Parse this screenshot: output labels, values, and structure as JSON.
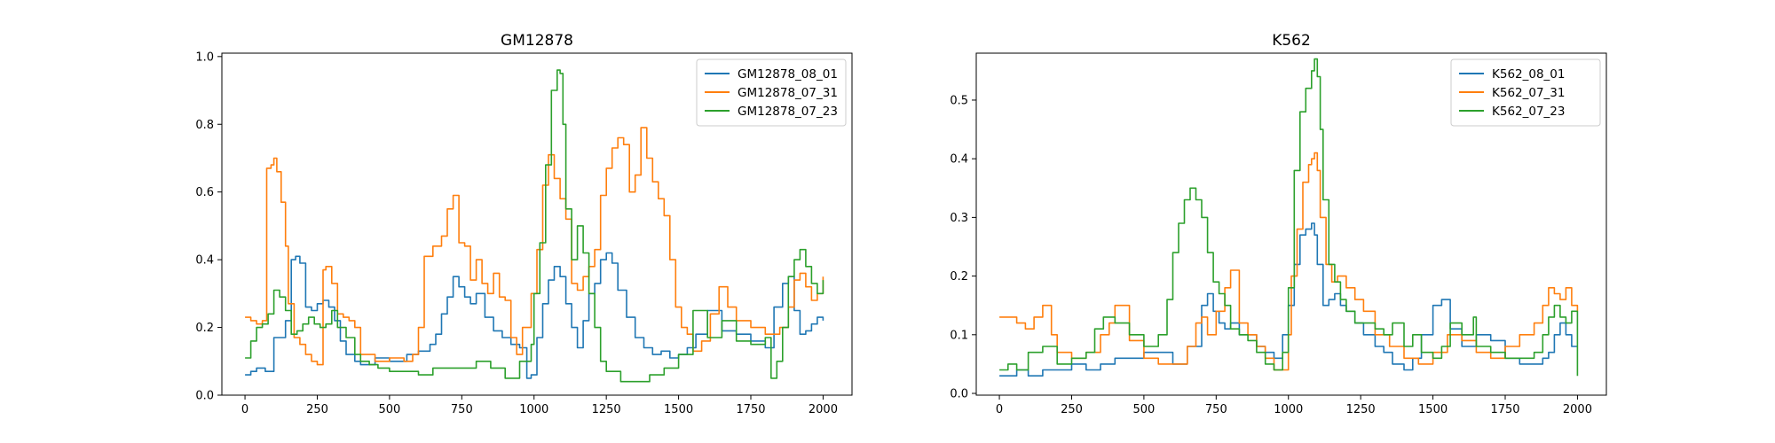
{
  "chart_data": [
    {
      "type": "line",
      "title": "GM12878",
      "xlabel": "",
      "ylabel": "",
      "xlim": [
        -80,
        2100
      ],
      "ylim": [
        0,
        1.01
      ],
      "xticks": [
        0,
        250,
        500,
        750,
        1000,
        1250,
        1500,
        1750,
        2000
      ],
      "xtick_labels": [
        "0",
        "250",
        "500",
        "750",
        "1000",
        "1250",
        "1500",
        "1750",
        "2000"
      ],
      "yticks": [
        0.0,
        0.2,
        0.4,
        0.6,
        0.8,
        1.0
      ],
      "ytick_labels": [
        "0.0",
        "0.2",
        "0.4",
        "0.6",
        "0.8",
        "1.0"
      ],
      "grid": false,
      "legend_position": "top-right",
      "series": [
        {
          "name": "GM12878_08_01",
          "color": "#1f77b4",
          "x": [
            0,
            20,
            40,
            70,
            100,
            120,
            140,
            160,
            175,
            190,
            210,
            230,
            250,
            270,
            290,
            310,
            330,
            350,
            380,
            400,
            450,
            500,
            530,
            560,
            600,
            640,
            660,
            680,
            700,
            720,
            740,
            760,
            780,
            800,
            830,
            860,
            890,
            920,
            950,
            975,
            990,
            1010,
            1030,
            1050,
            1070,
            1090,
            1110,
            1130,
            1150,
            1170,
            1190,
            1210,
            1230,
            1250,
            1270,
            1290,
            1320,
            1350,
            1380,
            1410,
            1440,
            1470,
            1500,
            1530,
            1560,
            1600,
            1650,
            1700,
            1750,
            1800,
            1830,
            1860,
            1880,
            1900,
            1920,
            1940,
            1960,
            1980,
            2000
          ],
          "y": [
            0.06,
            0.07,
            0.08,
            0.07,
            0.17,
            0.17,
            0.22,
            0.4,
            0.41,
            0.39,
            0.26,
            0.25,
            0.27,
            0.28,
            0.26,
            0.22,
            0.16,
            0.12,
            0.1,
            0.09,
            0.11,
            0.1,
            0.1,
            0.12,
            0.13,
            0.15,
            0.18,
            0.24,
            0.29,
            0.35,
            0.32,
            0.29,
            0.27,
            0.3,
            0.23,
            0.19,
            0.17,
            0.15,
            0.14,
            0.05,
            0.06,
            0.17,
            0.27,
            0.34,
            0.38,
            0.35,
            0.27,
            0.2,
            0.14,
            0.22,
            0.3,
            0.33,
            0.4,
            0.42,
            0.39,
            0.31,
            0.23,
            0.17,
            0.14,
            0.12,
            0.13,
            0.11,
            0.12,
            0.14,
            0.18,
            0.25,
            0.19,
            0.18,
            0.16,
            0.14,
            0.26,
            0.33,
            0.35,
            0.25,
            0.18,
            0.19,
            0.21,
            0.23,
            0.22
          ]
        },
        {
          "name": "GM12878_07_31",
          "color": "#ff7f0e",
          "x": [
            0,
            20,
            40,
            60,
            75,
            90,
            100,
            110,
            125,
            140,
            150,
            170,
            190,
            210,
            230,
            250,
            270,
            280,
            300,
            320,
            340,
            360,
            380,
            400,
            450,
            500,
            550,
            580,
            600,
            620,
            650,
            680,
            700,
            720,
            740,
            760,
            780,
            800,
            820,
            840,
            860,
            880,
            900,
            920,
            940,
            960,
            990,
            1010,
            1030,
            1050,
            1070,
            1090,
            1110,
            1130,
            1150,
            1170,
            1190,
            1210,
            1230,
            1250,
            1270,
            1290,
            1310,
            1330,
            1350,
            1370,
            1390,
            1410,
            1430,
            1450,
            1470,
            1490,
            1510,
            1530,
            1550,
            1580,
            1610,
            1640,
            1670,
            1700,
            1750,
            1800,
            1850,
            1880,
            1900,
            1920,
            1940,
            1960,
            1980,
            2000
          ],
          "y": [
            0.23,
            0.22,
            0.21,
            0.22,
            0.67,
            0.68,
            0.7,
            0.66,
            0.57,
            0.44,
            0.27,
            0.17,
            0.15,
            0.12,
            0.1,
            0.09,
            0.37,
            0.38,
            0.33,
            0.24,
            0.23,
            0.22,
            0.2,
            0.12,
            0.1,
            0.11,
            0.1,
            0.12,
            0.2,
            0.41,
            0.44,
            0.47,
            0.55,
            0.59,
            0.45,
            0.44,
            0.34,
            0.4,
            0.33,
            0.3,
            0.36,
            0.29,
            0.28,
            0.17,
            0.12,
            0.2,
            0.3,
            0.43,
            0.62,
            0.71,
            0.64,
            0.58,
            0.52,
            0.33,
            0.31,
            0.35,
            0.38,
            0.43,
            0.59,
            0.67,
            0.73,
            0.76,
            0.74,
            0.6,
            0.65,
            0.79,
            0.7,
            0.63,
            0.58,
            0.53,
            0.4,
            0.26,
            0.2,
            0.18,
            0.13,
            0.16,
            0.24,
            0.32,
            0.26,
            0.22,
            0.2,
            0.18,
            0.2,
            0.26,
            0.34,
            0.36,
            0.32,
            0.28,
            0.3,
            0.35
          ]
        },
        {
          "name": "GM12878_07_23",
          "color": "#2ca02c",
          "x": [
            0,
            20,
            40,
            60,
            80,
            100,
            120,
            140,
            160,
            180,
            200,
            220,
            240,
            260,
            280,
            300,
            320,
            350,
            380,
            400,
            430,
            460,
            500,
            550,
            600,
            650,
            700,
            750,
            800,
            850,
            900,
            950,
            990,
            1000,
            1020,
            1040,
            1060,
            1080,
            1090,
            1100,
            1110,
            1130,
            1150,
            1170,
            1190,
            1210,
            1230,
            1250,
            1300,
            1350,
            1400,
            1450,
            1500,
            1550,
            1600,
            1650,
            1700,
            1750,
            1800,
            1820,
            1840,
            1860,
            1880,
            1900,
            1920,
            1940,
            1960,
            1980,
            2000
          ],
          "y": [
            0.11,
            0.16,
            0.2,
            0.21,
            0.24,
            0.31,
            0.29,
            0.25,
            0.18,
            0.19,
            0.21,
            0.23,
            0.21,
            0.2,
            0.21,
            0.25,
            0.2,
            0.17,
            0.12,
            0.1,
            0.09,
            0.08,
            0.07,
            0.07,
            0.06,
            0.08,
            0.08,
            0.08,
            0.1,
            0.08,
            0.05,
            0.1,
            0.15,
            0.3,
            0.45,
            0.68,
            0.9,
            0.96,
            0.95,
            0.8,
            0.55,
            0.4,
            0.5,
            0.42,
            0.3,
            0.2,
            0.1,
            0.07,
            0.04,
            0.04,
            0.06,
            0.08,
            0.12,
            0.25,
            0.17,
            0.22,
            0.16,
            0.15,
            0.17,
            0.05,
            0.1,
            0.2,
            0.35,
            0.4,
            0.43,
            0.38,
            0.33,
            0.3,
            0.34
          ]
        }
      ]
    },
    {
      "type": "line",
      "title": "K562",
      "xlabel": "",
      "ylabel": "",
      "xlim": [
        -80,
        2100
      ],
      "ylim": [
        -0.003,
        0.58
      ],
      "xticks": [
        0,
        250,
        500,
        750,
        1000,
        1250,
        1500,
        1750,
        2000
      ],
      "xtick_labels": [
        "0",
        "250",
        "500",
        "750",
        "1000",
        "1250",
        "1500",
        "1750",
        "2000"
      ],
      "yticks": [
        0.0,
        0.1,
        0.2,
        0.3,
        0.4,
        0.5
      ],
      "ytick_labels": [
        "0.0",
        "0.1",
        "0.2",
        "0.3",
        "0.4",
        "0.5"
      ],
      "grid": false,
      "legend_position": "top-right",
      "series": [
        {
          "name": "K562_08_01",
          "color": "#1f77b4",
          "x": [
            0,
            30,
            60,
            100,
            150,
            200,
            250,
            300,
            350,
            400,
            450,
            500,
            550,
            600,
            650,
            700,
            720,
            740,
            760,
            780,
            800,
            830,
            860,
            890,
            920,
            950,
            980,
            1000,
            1020,
            1040,
            1060,
            1080,
            1090,
            1100,
            1120,
            1140,
            1160,
            1180,
            1200,
            1230,
            1260,
            1300,
            1330,
            1360,
            1400,
            1430,
            1460,
            1500,
            1530,
            1560,
            1600,
            1650,
            1700,
            1750,
            1800,
            1850,
            1880,
            1900,
            1920,
            1940,
            1960,
            1980,
            2000
          ],
          "y": [
            0.03,
            0.03,
            0.04,
            0.03,
            0.04,
            0.04,
            0.05,
            0.04,
            0.05,
            0.06,
            0.06,
            0.07,
            0.07,
            0.05,
            0.08,
            0.15,
            0.17,
            0.14,
            0.12,
            0.11,
            0.12,
            0.1,
            0.1,
            0.08,
            0.07,
            0.06,
            0.1,
            0.15,
            0.22,
            0.27,
            0.28,
            0.29,
            0.27,
            0.22,
            0.15,
            0.16,
            0.17,
            0.15,
            0.14,
            0.12,
            0.1,
            0.08,
            0.07,
            0.05,
            0.04,
            0.06,
            0.1,
            0.15,
            0.16,
            0.11,
            0.08,
            0.1,
            0.09,
            0.06,
            0.05,
            0.05,
            0.06,
            0.07,
            0.1,
            0.12,
            0.1,
            0.08,
            0.08
          ]
        },
        {
          "name": "K562_07_31",
          "color": "#ff7f0e",
          "x": [
            0,
            30,
            60,
            90,
            120,
            150,
            180,
            200,
            250,
            300,
            350,
            380,
            400,
            450,
            500,
            550,
            600,
            650,
            680,
            700,
            720,
            750,
            780,
            800,
            830,
            860,
            890,
            920,
            950,
            980,
            1000,
            1010,
            1030,
            1050,
            1070,
            1080,
            1090,
            1100,
            1110,
            1130,
            1150,
            1170,
            1200,
            1230,
            1260,
            1300,
            1350,
            1400,
            1450,
            1500,
            1550,
            1600,
            1650,
            1700,
            1750,
            1800,
            1850,
            1880,
            1900,
            1920,
            1940,
            1960,
            1980,
            2000
          ],
          "y": [
            0.13,
            0.13,
            0.12,
            0.11,
            0.13,
            0.15,
            0.1,
            0.07,
            0.06,
            0.07,
            0.1,
            0.12,
            0.15,
            0.09,
            0.06,
            0.05,
            0.05,
            0.08,
            0.12,
            0.13,
            0.1,
            0.14,
            0.18,
            0.21,
            0.12,
            0.1,
            0.08,
            0.06,
            0.04,
            0.04,
            0.1,
            0.2,
            0.28,
            0.36,
            0.39,
            0.4,
            0.41,
            0.38,
            0.3,
            0.22,
            0.19,
            0.2,
            0.18,
            0.16,
            0.14,
            0.1,
            0.08,
            0.06,
            0.05,
            0.07,
            0.1,
            0.09,
            0.07,
            0.06,
            0.08,
            0.1,
            0.12,
            0.15,
            0.18,
            0.17,
            0.16,
            0.18,
            0.15,
            0.14
          ]
        },
        {
          "name": "K562_07_23",
          "color": "#2ca02c",
          "x": [
            0,
            30,
            60,
            100,
            150,
            200,
            250,
            300,
            330,
            360,
            400,
            450,
            500,
            550,
            580,
            600,
            620,
            640,
            660,
            680,
            700,
            720,
            740,
            760,
            780,
            800,
            830,
            860,
            890,
            920,
            950,
            980,
            1000,
            1020,
            1040,
            1060,
            1080,
            1090,
            1100,
            1110,
            1120,
            1140,
            1160,
            1180,
            1200,
            1230,
            1260,
            1300,
            1330,
            1360,
            1400,
            1430,
            1460,
            1500,
            1530,
            1560,
            1600,
            1640,
            1650,
            1700,
            1750,
            1800,
            1850,
            1880,
            1900,
            1920,
            1940,
            1960,
            1980,
            2000
          ],
          "y": [
            0.04,
            0.05,
            0.04,
            0.07,
            0.08,
            0.05,
            0.06,
            0.07,
            0.11,
            0.13,
            0.12,
            0.1,
            0.08,
            0.1,
            0.16,
            0.24,
            0.29,
            0.33,
            0.35,
            0.33,
            0.3,
            0.24,
            0.19,
            0.17,
            0.15,
            0.11,
            0.1,
            0.09,
            0.07,
            0.05,
            0.04,
            0.07,
            0.18,
            0.38,
            0.48,
            0.52,
            0.55,
            0.57,
            0.54,
            0.45,
            0.33,
            0.22,
            0.19,
            0.16,
            0.14,
            0.12,
            0.12,
            0.11,
            0.1,
            0.12,
            0.08,
            0.1,
            0.07,
            0.06,
            0.08,
            0.12,
            0.1,
            0.13,
            0.08,
            0.07,
            0.06,
            0.06,
            0.07,
            0.1,
            0.13,
            0.15,
            0.13,
            0.12,
            0.14,
            0.03
          ]
        }
      ]
    }
  ]
}
